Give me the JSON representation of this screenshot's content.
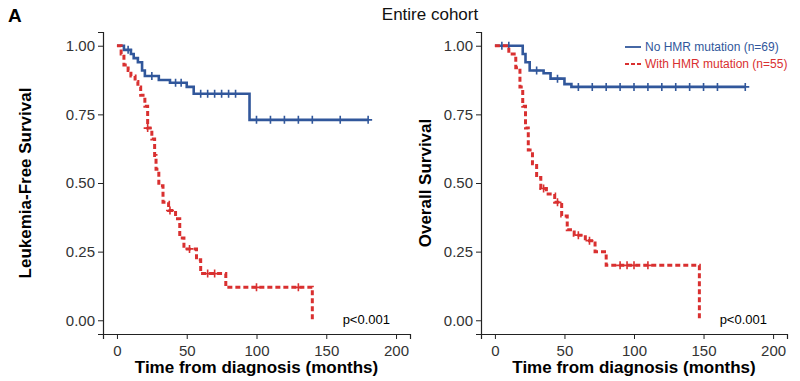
{
  "panel_label": "A",
  "title": "Entire cohort",
  "chart_data": [
    {
      "type": "step",
      "annotation": "p<0.001",
      "x_label": "Time from diagnosis (months)",
      "y_label": "Leukemia-Free Survival",
      "xlim": [
        -10,
        210
      ],
      "xticks": [
        0,
        50,
        100,
        150,
        200
      ],
      "ylim": [
        -0.05,
        1.05
      ],
      "yticks": [
        {
          "value": 0,
          "label": "0.00"
        },
        {
          "value": 0.25,
          "label": "0.25"
        },
        {
          "value": 0.5,
          "label": "0.50"
        },
        {
          "value": 0.75,
          "label": "0.75"
        },
        {
          "value": 1,
          "label": "1.00"
        }
      ],
      "grid": false,
      "series": [
        {
          "color": "#31579b",
          "line_style": "solid",
          "marker": "plus",
          "x": [
            0,
            5,
            10,
            12,
            15,
            18,
            20,
            30,
            38,
            50,
            55,
            95,
            180
          ],
          "values": [
            1,
            0.985,
            0.97,
            0.955,
            0.94,
            0.91,
            0.89,
            0.875,
            0.865,
            0.85,
            0.825,
            0.73,
            0.73
          ],
          "censored": {
            "x": [
              8,
              25,
              42,
              46,
              60,
              65,
              70,
              75,
              80,
              85,
              100,
              110,
              120,
              130,
              140,
              160,
              180
            ],
            "values": [
              0.985,
              0.89,
              0.865,
              0.865,
              0.825,
              0.825,
              0.825,
              0.825,
              0.825,
              0.825,
              0.73,
              0.73,
              0.73,
              0.73,
              0.73,
              0.73,
              0.73
            ]
          }
        },
        {
          "color": "#d93030",
          "line_style": "dashed",
          "marker": "plus",
          "x": [
            0,
            3,
            5,
            8,
            10,
            13,
            15,
            17,
            20,
            22,
            25,
            27,
            28,
            30,
            33,
            37,
            42,
            45,
            48,
            57,
            60,
            78,
            140
          ],
          "values": [
            1,
            0.97,
            0.93,
            0.91,
            0.89,
            0.87,
            0.85,
            0.82,
            0.78,
            0.7,
            0.66,
            0.6,
            0.55,
            0.49,
            0.43,
            0.4,
            0.37,
            0.3,
            0.26,
            0.22,
            0.17,
            0.12,
            0
          ],
          "censored": {
            "x": [
              22,
              38,
              52,
              65,
              70,
              100,
              130
            ],
            "values": [
              0.7,
              0.4,
              0.26,
              0.17,
              0.17,
              0.12,
              0.12
            ]
          }
        }
      ]
    },
    {
      "type": "step",
      "annotation": "p<0.001",
      "legend": "top-right",
      "x_label": "Time from diagnosis (months)",
      "y_label": "Overall Survival",
      "xlim": [
        -10,
        210
      ],
      "xticks": [
        0,
        50,
        100,
        150,
        200
      ],
      "ylim": [
        -0.05,
        1.05
      ],
      "yticks": [
        {
          "value": 0,
          "label": "0.00"
        },
        {
          "value": 0.25,
          "label": "0.25"
        },
        {
          "value": 0.5,
          "label": "0.50"
        },
        {
          "value": 0.75,
          "label": "0.75"
        },
        {
          "value": 1,
          "label": "1.00"
        }
      ],
      "grid": false,
      "series": [
        {
          "name": "No HMR mutation (n=69)",
          "color": "#31579b",
          "line_style": "solid",
          "marker": "plus",
          "x": [
            0,
            20,
            22,
            25,
            35,
            40,
            50,
            55,
            180
          ],
          "values": [
            1,
            0.97,
            0.94,
            0.91,
            0.9,
            0.88,
            0.86,
            0.85,
            0.85
          ],
          "censored": {
            "x": [
              5,
              10,
              30,
              45,
              60,
              70,
              80,
              90,
              100,
              110,
              120,
              130,
              140,
              150,
              160,
              180
            ],
            "values": [
              1,
              1,
              0.91,
              0.88,
              0.85,
              0.85,
              0.85,
              0.85,
              0.85,
              0.85,
              0.85,
              0.85,
              0.85,
              0.85,
              0.85,
              0.85
            ]
          }
        },
        {
          "name": "With HMR mutation (n=55)",
          "color": "#d93030",
          "line_style": "dashed",
          "marker": "plus",
          "x": [
            0,
            10,
            15,
            18,
            20,
            22,
            24,
            27,
            30,
            33,
            37,
            43,
            48,
            52,
            57,
            65,
            72,
            80,
            147
          ],
          "values": [
            1,
            0.97,
            0.92,
            0.85,
            0.78,
            0.7,
            0.62,
            0.57,
            0.52,
            0.48,
            0.46,
            0.43,
            0.38,
            0.33,
            0.31,
            0.29,
            0.25,
            0.2,
            0
          ],
          "censored": {
            "x": [
              35,
              45,
              60,
              68,
              90,
              95,
              100,
              110
            ],
            "values": [
              0.48,
              0.43,
              0.31,
              0.29,
              0.2,
              0.2,
              0.2,
              0.2
            ]
          }
        }
      ]
    }
  ]
}
